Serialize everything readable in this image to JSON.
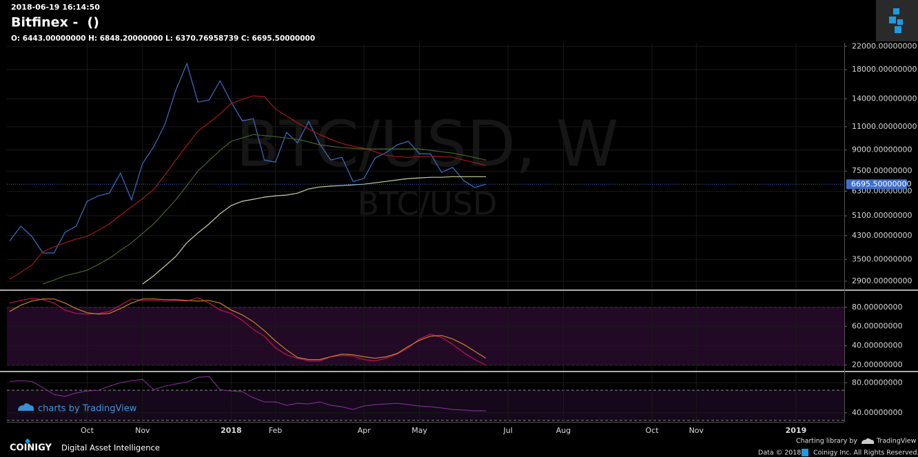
{
  "header": {
    "timestamp": "2018-06-19 16:14:50",
    "title": "Bitfinex -  ()",
    "ohlc": "O: 6443.00000000 H: 6848.20000000 L: 6370.76958739 C: 6695.50000000"
  },
  "footer": {
    "tv_badge": "charts by TradingView",
    "brand": "COINIGY",
    "tagline": "Digital Asset Intelligence",
    "library": "Charting library by",
    "library_name": "TradingView",
    "data_year": "Data © 2018",
    "rights": "Coinigy Inc. All Rights Reserved."
  },
  "chart_data": [
    {
      "type": "line",
      "watermark": "BTC/USD, W",
      "watermark_sub": "BTC/USD",
      "log_scale": true,
      "grid": true,
      "ylim": [
        2700,
        22700
      ],
      "yticks": [
        {
          "value": 22000,
          "label": "22000.00000000"
        },
        {
          "value": 18000,
          "label": "18000.00000000"
        },
        {
          "value": 14000,
          "label": "14000.00000000"
        },
        {
          "value": 11000,
          "label": "11000.00000000"
        },
        {
          "value": 9000,
          "label": "9000.00000000"
        },
        {
          "value": 7500,
          "label": "7500.00000000"
        },
        {
          "value": 6300,
          "label": "6300.00000000"
        },
        {
          "value": 5100,
          "label": "5100.00000000"
        },
        {
          "value": 4300,
          "label": "4300.00000000"
        },
        {
          "value": 3500,
          "label": "3500.00000000"
        },
        {
          "value": 2900,
          "label": "2900.00000000"
        }
      ],
      "last_price": {
        "value": 6695.5,
        "label": "6695.50000000"
      },
      "series": [
        {
          "color": "#3f6fc8",
          "values": [
            4100,
            4660,
            4270,
            3700,
            3700,
            4420,
            4660,
            5780,
            6060,
            6200,
            7370,
            5850,
            8010,
            9240,
            11170,
            15050,
            18970,
            13600,
            13840,
            16350,
            13600,
            11570,
            11790,
            8250,
            8100,
            10470,
            9570,
            11510,
            9460,
            8250,
            8450,
            6860,
            7040,
            8400,
            8810,
            9410,
            9700,
            8710,
            8710,
            7420,
            7740,
            6910,
            6510,
            6695.5,
            null,
            null,
            null,
            null,
            null,
            null,
            null,
            null,
            null,
            null,
            null,
            null,
            null,
            null,
            null,
            null,
            null,
            null,
            null,
            null,
            null,
            null,
            null,
            null,
            null,
            null,
            null,
            null,
            null,
            null,
            null,
            null
          ]
        },
        {
          "color": "#a8161c",
          "values": [
            2950,
            3130,
            3330,
            3740,
            3900,
            4040,
            4170,
            4270,
            4500,
            4750,
            5130,
            5510,
            5920,
            6390,
            7240,
            8250,
            9350,
            10600,
            11380,
            12290,
            13430,
            13920,
            14350,
            14260,
            12810,
            12080,
            11380,
            10780,
            10280,
            9860,
            9520,
            9290,
            9130,
            8860,
            8600,
            8500,
            8450,
            8500,
            8550,
            8500,
            8450,
            8250,
            8060,
            7870,
            null,
            null,
            null,
            null,
            null,
            null,
            null,
            null,
            null,
            null,
            null,
            null,
            null,
            null,
            null,
            null,
            null,
            null,
            null,
            null,
            null,
            null,
            null,
            null,
            null,
            null,
            null,
            null,
            null,
            null,
            null,
            null
          ]
        },
        {
          "color": "#45662a",
          "values": [
            null,
            null,
            null,
            2830,
            2930,
            3040,
            3110,
            3190,
            3350,
            3530,
            3780,
            4040,
            4380,
            4750,
            5270,
            5850,
            6620,
            7500,
            8200,
            8970,
            9690,
            9980,
            10280,
            10190,
            10100,
            9980,
            9860,
            9640,
            9410,
            9290,
            9180,
            9130,
            9080,
            9080,
            9080,
            9080,
            9080,
            9080,
            8970,
            8860,
            8760,
            8600,
            8430,
            8250,
            null,
            null,
            null,
            null,
            null,
            null,
            null,
            null,
            null,
            null,
            null,
            null,
            null,
            null,
            null,
            null,
            null,
            null,
            null,
            null,
            null,
            null,
            null,
            null,
            null,
            null,
            null,
            null,
            null,
            null,
            null,
            null
          ]
        },
        {
          "color": "#c6d4a6",
          "values": [
            null,
            null,
            null,
            null,
            null,
            null,
            null,
            null,
            null,
            null,
            null,
            null,
            2830,
            3040,
            3300,
            3590,
            4040,
            4400,
            4750,
            5190,
            5570,
            5780,
            5880,
            5990,
            6060,
            6100,
            6200,
            6430,
            6540,
            6590,
            6620,
            6660,
            6700,
            6780,
            6860,
            6950,
            7030,
            7070,
            7110,
            7110,
            7150,
            7150,
            7150,
            7150,
            null,
            null,
            null,
            null,
            null,
            null,
            null,
            null,
            null,
            null,
            null,
            null,
            null,
            null,
            null,
            null,
            null,
            null,
            null,
            null,
            null,
            null,
            null,
            null,
            null,
            null,
            null,
            null,
            null,
            null,
            null,
            null
          ]
        }
      ]
    },
    {
      "type": "line",
      "grid": true,
      "ylim": [
        14,
        97
      ],
      "yticks": [
        {
          "value": 80,
          "label": "80.00000000"
        },
        {
          "value": 60,
          "label": "60.00000000"
        },
        {
          "value": 40,
          "label": "40.00000000"
        },
        {
          "value": 20,
          "label": "20.00000000"
        }
      ],
      "levels": [
        80,
        20
      ],
      "band_color": "#220a26",
      "series": [
        {
          "color": "#c0144a",
          "values": [
            84.3,
            87.1,
            89.3,
            87.9,
            84.3,
            77.1,
            73.6,
            72.9,
            73.6,
            75.7,
            82.1,
            88.6,
            87.1,
            87.1,
            86.4,
            87.1,
            86.4,
            90,
            84.3,
            77.1,
            73.6,
            66.4,
            57.1,
            50,
            37.9,
            30.7,
            27.1,
            24.3,
            24.3,
            28.6,
            30,
            29.3,
            25.7,
            24.3,
            27.1,
            31.4,
            37.9,
            47.1,
            52.1,
            48.6,
            41.4,
            32.9,
            25.7,
            20,
            null,
            null,
            null,
            null,
            null,
            null,
            null,
            null,
            null,
            null,
            null,
            null,
            null,
            null,
            null,
            null,
            null,
            null,
            null,
            null,
            null,
            null,
            null,
            null,
            null,
            null,
            null,
            null,
            null,
            null,
            null,
            null
          ]
        },
        {
          "color": "#c8862c",
          "values": [
            75.7,
            82.1,
            86.4,
            88.6,
            88.6,
            84.3,
            78.6,
            74.3,
            72.9,
            73.6,
            78.6,
            84.3,
            88.6,
            88.6,
            87.9,
            87.9,
            87.1,
            86.4,
            87.1,
            84.3,
            77.1,
            72.1,
            65,
            55.7,
            45,
            35.7,
            27.9,
            25.7,
            25.7,
            28.6,
            31.4,
            30.7,
            28.6,
            27.1,
            28.6,
            32.1,
            39.3,
            45.7,
            50,
            50.7,
            47.1,
            41.4,
            34.3,
            27.1,
            null,
            null,
            null,
            null,
            null,
            null,
            null,
            null,
            null,
            null,
            null,
            null,
            null,
            null,
            null,
            null,
            null,
            null,
            null,
            null,
            null,
            null,
            null,
            null,
            null,
            null,
            null,
            null,
            null,
            null,
            null,
            null
          ]
        }
      ]
    },
    {
      "type": "line",
      "grid": true,
      "ylim": [
        28,
        94
      ],
      "yticks": [
        {
          "value": 80,
          "label": "80.00000000"
        },
        {
          "value": 40,
          "label": "40.00000000"
        }
      ],
      "levels": [
        70,
        30
      ],
      "band_color": "#14081a",
      "categories": [
        null,
        null,
        null,
        null,
        null,
        null,
        null,
        "Oct",
        null,
        null,
        null,
        null,
        "Nov",
        null,
        null,
        null,
        null,
        null,
        null,
        null,
        "2018",
        null,
        null,
        null,
        "Feb",
        null,
        null,
        null,
        null,
        null,
        null,
        null,
        "Apr",
        null,
        null,
        null,
        null,
        "May",
        null,
        null,
        null,
        null,
        null,
        null,
        null,
        "Jul",
        null,
        null,
        null,
        null,
        "Aug",
        null,
        null,
        null,
        null,
        null,
        null,
        null,
        "Oct",
        null,
        null,
        null,
        "Nov",
        null,
        null,
        null,
        null,
        null,
        null,
        null,
        null,
        "2019",
        null,
        null,
        null,
        null
      ],
      "series": [
        {
          "color": "#7a2a8c",
          "values": [
            81.8,
            82.7,
            81.8,
            73.6,
            64.5,
            61.8,
            66.4,
            69.1,
            70,
            75.5,
            80,
            82.7,
            84.5,
            70.9,
            75.5,
            78.2,
            80.9,
            87.3,
            88.2,
            70.9,
            69.1,
            68.2,
            60,
            54.5,
            54.5,
            50,
            52.7,
            51.8,
            54.5,
            50,
            48.2,
            44.5,
            49.1,
            50.9,
            51.8,
            52.7,
            50.9,
            49.1,
            48.2,
            46.4,
            44.5,
            43.6,
            42.7,
            42.7,
            null,
            null,
            null,
            null,
            null,
            null,
            null,
            null,
            null,
            null,
            null,
            null,
            null,
            null,
            null,
            null,
            null,
            null,
            null,
            null,
            null,
            null,
            null,
            null,
            null,
            null,
            null,
            null,
            null,
            null,
            null,
            null
          ]
        }
      ]
    }
  ]
}
